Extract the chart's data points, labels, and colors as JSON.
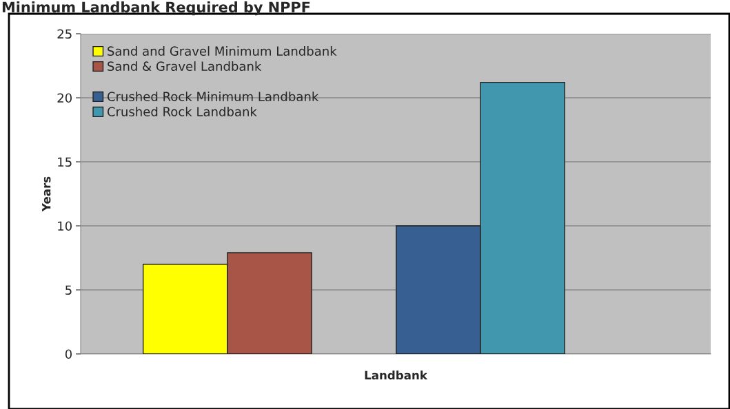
{
  "chart_data": {
    "type": "bar",
    "title": "Minimum Landbank Required by NPPF",
    "xlabel": "Landbank",
    "ylabel": "Years",
    "categories": [
      null,
      null
    ],
    "series": [
      {
        "name": "Sand and Gravel Minimum Landbank",
        "color": "#ffff00",
        "values": [
          7.0,
          null
        ]
      },
      {
        "name": "Sand & Gravel Landbank",
        "color": "#a85446",
        "values": [
          7.9,
          null
        ]
      },
      {
        "name": "Crushed Rock Minimum Landbank",
        "color": "#375f91",
        "values": [
          null,
          10.0
        ]
      },
      {
        "name": "Crushed Rock Landbank",
        "color": "#4198ae",
        "values": [
          null,
          21.2
        ]
      }
    ],
    "ylim": [
      0,
      25
    ],
    "yticks": [
      0,
      5,
      10,
      15,
      20,
      25
    ],
    "grid": "y",
    "legend": "top left"
  }
}
